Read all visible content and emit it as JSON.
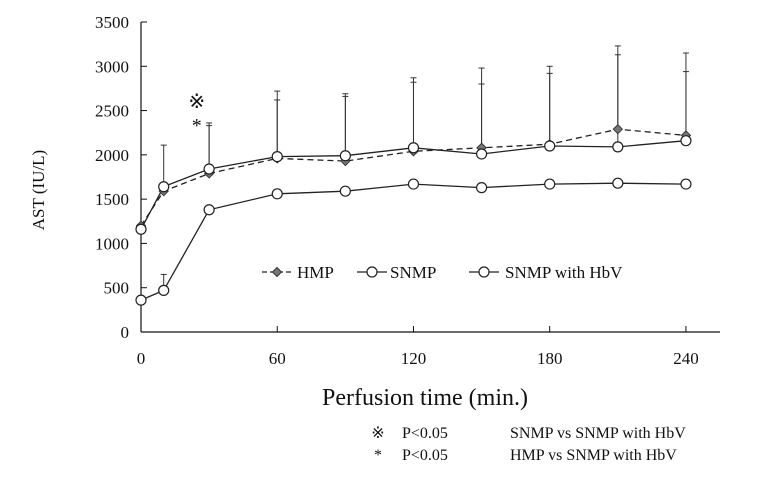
{
  "chart_data": {
    "type": "line",
    "title": "",
    "xlabel": "Perfusion time (min.)",
    "ylabel": "AST (IU/L)",
    "xlim": [
      0,
      255
    ],
    "ylim": [
      0,
      3500
    ],
    "xticks": [
      "0",
      "60",
      "120",
      "180",
      "240"
    ],
    "xtick_values": [
      0,
      60,
      120,
      180,
      240
    ],
    "yticks": [
      "0",
      "500",
      "1000",
      "1500",
      "2000",
      "2500",
      "3000",
      "3500"
    ],
    "ytick_values": [
      0,
      500,
      1000,
      1500,
      2000,
      2500,
      3000,
      3500
    ],
    "grid": false,
    "legend_position": "center",
    "x": [
      0,
      10,
      30,
      60,
      90,
      120,
      150,
      180,
      210,
      240
    ],
    "series": [
      {
        "name": "HMP",
        "marker": "diamond",
        "line_style": "dashed",
        "color": "#222222",
        "values": [
          1200,
          1590,
          1790,
          1960,
          1930,
          2040,
          2080,
          2120,
          2290,
          2220
        ],
        "error": [
          0,
          0,
          540,
          760,
          760,
          830,
          900,
          880,
          940,
          930
        ]
      },
      {
        "name": "SNMP",
        "marker": "open-circle",
        "line_style": "solid",
        "color": "#222222",
        "values": [
          1160,
          1640,
          1840,
          1980,
          1990,
          2080,
          2010,
          2100,
          2090,
          2160
        ],
        "error": [
          0,
          470,
          520,
          640,
          670,
          740,
          790,
          820,
          1040,
          780
        ]
      },
      {
        "name": "SNMP with HbV",
        "marker": "open-circle",
        "line_style": "solid",
        "color": "#222222",
        "values": [
          360,
          470,
          1380,
          1560,
          1590,
          1670,
          1630,
          1670,
          1680,
          1670
        ],
        "error": [
          0,
          180,
          0,
          0,
          0,
          0,
          0,
          0,
          0,
          0
        ]
      }
    ],
    "annotations": [
      {
        "x": 10,
        "symbols": [
          "※",
          "*"
        ]
      }
    ],
    "notes": [
      {
        "symbol": "※",
        "p": "P<0.05",
        "text": "SNMP vs SNMP with HbV"
      },
      {
        "symbol": "*",
        "p": "P<0.05",
        "text": "HMP vs SNMP with HbV"
      }
    ]
  }
}
